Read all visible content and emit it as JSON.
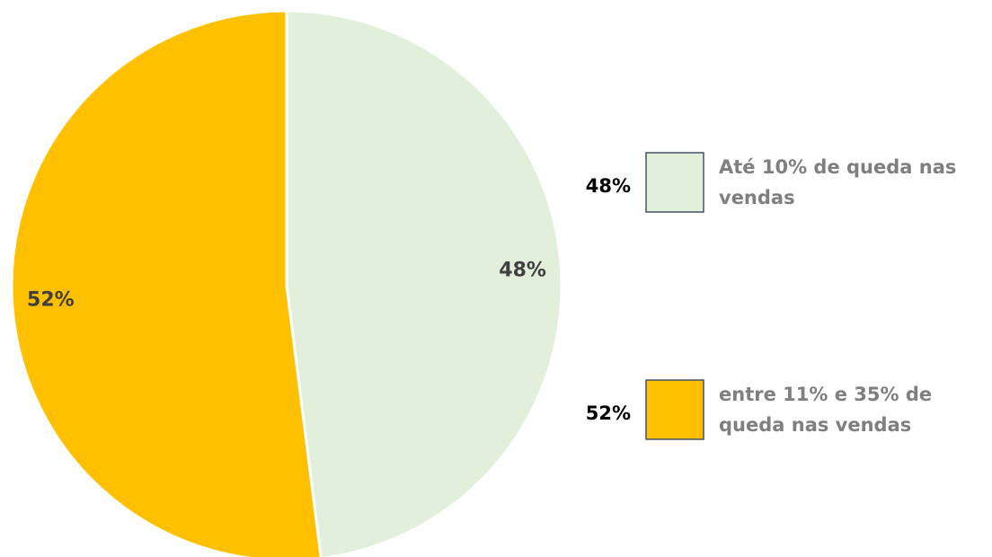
{
  "chart_data": {
    "type": "pie",
    "categories": [
      "Até 10% de queda nas vendas",
      "entre 11% e 35% de queda nas vendas"
    ],
    "values": [
      48,
      52
    ],
    "value_labels": [
      "48%",
      "52%"
    ],
    "colors": [
      "#e2efda",
      "#ffc000"
    ]
  }
}
